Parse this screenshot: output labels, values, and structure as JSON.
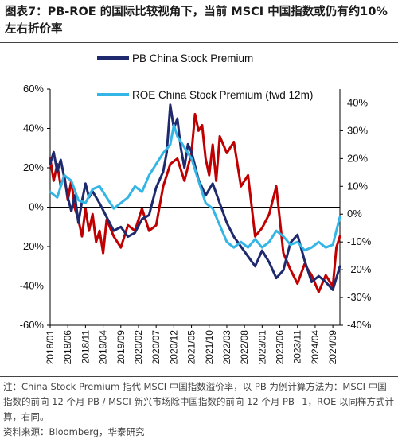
{
  "header": {
    "title": "图表7：PB-ROE 的国际比较视角下，当前 MSCI 中国指数或仍有约10%左右折价率"
  },
  "footer": {
    "note": "注：China Stock Premium 指代 MSCI 中国指数溢价率，以 PB 为例计算方法为：MSCI 中国指数的前向 12 个月 PB / MSCI 新兴市场除中国指数的前向 12 个月 PB –1，ROE 以同样方式计算，右同。",
    "source": "资料来源：Bloomberg，华泰研究"
  },
  "chart_data": {
    "type": "line",
    "legend": [
      "PB China Stock Premium",
      "ROE China Stock Premium (fwd 12m)"
    ],
    "x_ticks": [
      "2018/01",
      "2018/06",
      "2018/11",
      "2019/04",
      "2019/09",
      "2020/02",
      "2020/07",
      "2020/12",
      "2021/05",
      "2021/10",
      "2022/03",
      "2022/08",
      "2023/01",
      "2023/06",
      "2023/11",
      "2024/04",
      "2024/09"
    ],
    "left_axis": {
      "ticks": [
        "60%",
        "40%",
        "20%",
        "0%",
        "-20%",
        "-40%",
        "-60%"
      ],
      "min": -60,
      "max": 60
    },
    "right_axis": {
      "ticks": [
        "40%",
        "30%",
        "20%",
        "10%",
        "0%",
        "-10%",
        "-20%",
        "-30%",
        "-40%"
      ],
      "min": -40,
      "max": 45
    },
    "colors": {
      "pb": "#1f2a6e",
      "roe": "#33b5e5",
      "red": "#c00000"
    },
    "series": [
      {
        "name": "PB China Stock Premium",
        "axis": "left",
        "color": "#1f2a6e",
        "x": [
          0,
          1,
          2,
          3,
          4,
          5,
          6,
          7,
          8,
          9,
          10,
          11,
          12,
          14,
          16,
          18,
          20,
          22,
          24,
          26,
          28,
          30,
          32,
          33,
          34,
          35,
          36,
          37,
          38,
          39,
          40,
          42,
          44,
          46,
          48,
          50,
          52,
          54,
          56,
          58,
          60,
          62,
          64,
          66,
          68,
          70,
          72,
          74,
          76,
          78,
          80,
          82
        ],
        "values": [
          22,
          28,
          18,
          24,
          15,
          5,
          -2,
          6,
          -8,
          3,
          12,
          5,
          8,
          2,
          -5,
          -12,
          -10,
          -15,
          -13,
          -6,
          -4,
          10,
          18,
          28,
          52,
          40,
          45,
          30,
          20,
          32,
          28,
          14,
          6,
          12,
          2,
          -8,
          -15,
          -20,
          -25,
          -30,
          -22,
          -28,
          -36,
          -32,
          -18,
          -14,
          -27,
          -38,
          -35,
          -38,
          -42,
          -30
        ]
      },
      {
        "name": "ROE China Stock Premium (fwd 12m)",
        "axis": "right",
        "color": "#33b5e5",
        "x": [
          0,
          2,
          4,
          6,
          8,
          10,
          12,
          14,
          16,
          18,
          20,
          22,
          24,
          26,
          28,
          30,
          32,
          34,
          35,
          36,
          38,
          40,
          42,
          44,
          46,
          48,
          50,
          52,
          54,
          56,
          58,
          60,
          62,
          64,
          66,
          68,
          70,
          72,
          74,
          76,
          78,
          80,
          82
        ],
        "values": [
          8,
          6,
          14,
          12,
          5,
          4,
          9,
          10,
          6,
          2,
          4,
          6,
          10,
          8,
          14,
          18,
          22,
          25,
          32,
          28,
          24,
          20,
          12,
          4,
          2,
          -4,
          -10,
          -12,
          -10,
          -12,
          -9,
          -12,
          -10,
          -6,
          -8,
          -11,
          -10,
          -13,
          -12,
          -10,
          -12,
          -11,
          -1
        ]
      },
      {
        "name": "",
        "axis": "right",
        "color": "#c00000",
        "x": [
          0,
          1,
          2,
          3,
          4,
          5,
          6,
          7,
          8,
          9,
          10,
          11,
          12,
          13,
          14,
          15,
          16,
          18,
          20,
          22,
          24,
          26,
          28,
          30,
          32,
          34,
          36,
          38,
          40,
          41,
          42,
          43,
          44,
          45,
          46,
          47,
          48,
          50,
          52,
          54,
          56,
          58,
          60,
          62,
          64,
          66,
          68,
          70,
          72,
          74,
          76,
          78,
          80,
          81,
          82
        ],
        "values": [
          20,
          12,
          18,
          10,
          14,
          5,
          12,
          2,
          -2,
          -8,
          2,
          -6,
          0,
          -10,
          -6,
          -14,
          -2,
          -8,
          -12,
          -4,
          -6,
          2,
          -6,
          -4,
          10,
          18,
          20,
          12,
          22,
          36,
          30,
          32,
          20,
          14,
          25,
          12,
          28,
          22,
          26,
          10,
          14,
          -8,
          -5,
          0,
          10,
          -14,
          -20,
          -25,
          -18,
          -22,
          -28,
          -22,
          -26,
          -12,
          -8
        ]
      }
    ]
  }
}
